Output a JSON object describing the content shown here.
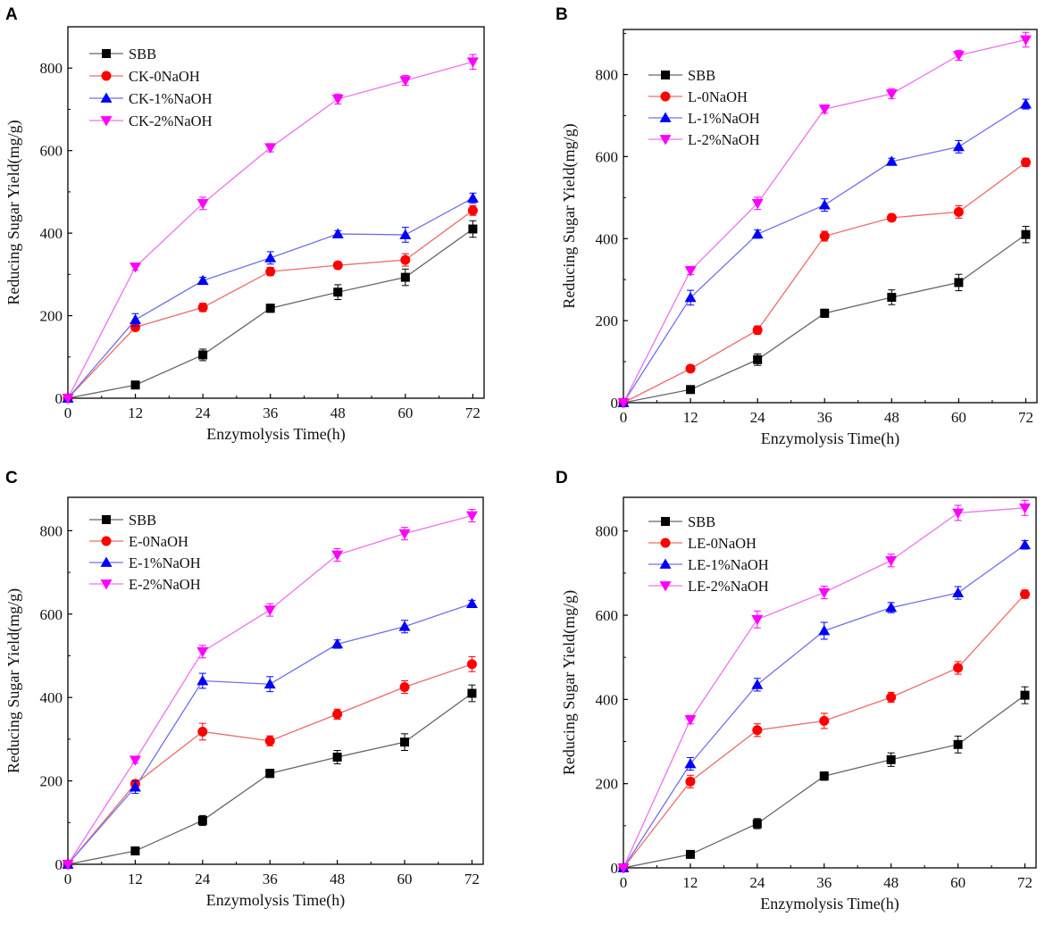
{
  "figure": {
    "marker_styles": {
      "SBB": "square",
      "0NaOH": "circle",
      "1%NaOH": "triangle-up",
      "2%NaOH": "triangle-down"
    },
    "colors": {
      "SBB": "#000000",
      "0NaOH": "#ff0000",
      "1%NaOH": "#0000ff",
      "2%NaOH": "#ff00ff",
      "SBB_line": "#666666",
      "0NaOH_line": "#f06a6a",
      "1%NaOH_line": "#7070ee",
      "2%NaOH_line": "#f070f0"
    }
  },
  "chart_data": [
    {
      "panel": "A",
      "type": "line",
      "xlabel": "Enzymolysis Time(h)",
      "ylabel": "Reducing Sugar Yield(mg/g)",
      "x": [
        0,
        12,
        24,
        36,
        48,
        60,
        72
      ],
      "xticks": [
        "0",
        "12",
        "24",
        "36",
        "48",
        "60",
        "72"
      ],
      "yticks": [
        "0",
        "200",
        "400",
        "600",
        "800"
      ],
      "xlim": [
        0,
        74
      ],
      "ylim": [
        0,
        900
      ],
      "legend_position": "top-left",
      "series": [
        {
          "name": "SBB",
          "key": "SBB",
          "values": [
            0,
            32,
            105,
            218,
            257,
            293,
            410
          ],
          "errors": [
            0,
            5,
            14,
            10,
            18,
            20,
            20
          ]
        },
        {
          "name": "CK-0NaOH",
          "key": "0NaOH",
          "values": [
            0,
            172,
            220,
            307,
            322,
            335,
            455
          ],
          "errors": [
            0,
            8,
            10,
            10,
            8,
            15,
            12
          ]
        },
        {
          "name": "CK-1%NaOH",
          "key": "1%NaOH",
          "values": [
            0,
            190,
            285,
            340,
            398,
            396,
            485
          ],
          "errors": [
            0,
            15,
            8,
            15,
            8,
            18,
            12
          ]
        },
        {
          "name": "CK-2%NaOH",
          "key": "2%NaOH",
          "values": [
            0,
            318,
            472,
            607,
            725,
            770,
            815
          ],
          "errors": [
            0,
            8,
            15,
            10,
            12,
            12,
            18
          ]
        }
      ]
    },
    {
      "panel": "B",
      "type": "line",
      "xlabel": "Enzymolysis Time(h)",
      "ylabel": "Reducing Sugar Yield(mg/g)",
      "x": [
        0,
        12,
        24,
        36,
        48,
        60,
        72
      ],
      "xticks": [
        "0",
        "12",
        "24",
        "36",
        "48",
        "60",
        "72"
      ],
      "yticks": [
        "0",
        "200",
        "400",
        "600",
        "800"
      ],
      "xlim": [
        0,
        74
      ],
      "ylim": [
        0,
        910
      ],
      "legend_position": "top-left",
      "series": [
        {
          "name": "SBB",
          "key": "SBB",
          "values": [
            0,
            32,
            105,
            218,
            257,
            293,
            410
          ],
          "errors": [
            0,
            5,
            14,
            10,
            18,
            20,
            20
          ]
        },
        {
          "name": "L-0NaOH",
          "key": "0NaOH",
          "values": [
            0,
            83,
            177,
            406,
            451,
            465,
            586
          ],
          "errors": [
            0,
            8,
            10,
            12,
            8,
            15,
            10
          ]
        },
        {
          "name": "L-1%NaOH",
          "key": "1%NaOH",
          "values": [
            0,
            256,
            411,
            482,
            588,
            624,
            728
          ],
          "errors": [
            0,
            18,
            10,
            15,
            8,
            15,
            12
          ]
        },
        {
          "name": "L-2%NaOH",
          "key": "2%NaOH",
          "values": [
            0,
            322,
            486,
            716,
            753,
            847,
            885
          ],
          "errors": [
            0,
            10,
            15,
            10,
            12,
            12,
            18
          ]
        }
      ]
    },
    {
      "panel": "C",
      "type": "line",
      "xlabel": "Enzymolysis Time(h)",
      "ylabel": "Reducing Sugar Yield(mg/g)",
      "x": [
        0,
        12,
        24,
        36,
        48,
        60,
        72
      ],
      "xticks": [
        "0",
        "12",
        "24",
        "36",
        "48",
        "60",
        "72"
      ],
      "yticks": [
        "0",
        "200",
        "400",
        "600",
        "800"
      ],
      "xlim": [
        0,
        74
      ],
      "ylim": [
        0,
        880
      ],
      "legend_position": "top-left",
      "series": [
        {
          "name": "SBB",
          "key": "SBB",
          "values": [
            0,
            32,
            105,
            218,
            257,
            293,
            410
          ],
          "errors": [
            0,
            5,
            12,
            10,
            16,
            20,
            20
          ]
        },
        {
          "name": "E-0NaOH",
          "key": "0NaOH",
          "values": [
            0,
            193,
            318,
            296,
            360,
            425,
            480
          ],
          "errors": [
            0,
            8,
            20,
            12,
            12,
            15,
            18
          ]
        },
        {
          "name": "E-1%NaOH",
          "key": "1%NaOH",
          "values": [
            0,
            185,
            440,
            432,
            528,
            570,
            625
          ],
          "errors": [
            0,
            15,
            18,
            18,
            10,
            15,
            8
          ]
        },
        {
          "name": "E-2%NaOH",
          "key": "2%NaOH",
          "values": [
            0,
            250,
            510,
            610,
            742,
            793,
            836
          ],
          "errors": [
            0,
            8,
            15,
            15,
            15,
            15,
            15
          ]
        }
      ]
    },
    {
      "panel": "D",
      "type": "line",
      "xlabel": "Enzymolysis Time(h)",
      "ylabel": "Reducing Sugar Yield(mg/g)",
      "x": [
        0,
        12,
        24,
        36,
        48,
        60,
        72
      ],
      "xticks": [
        "0",
        "12",
        "24",
        "36",
        "48",
        "60",
        "72"
      ],
      "yticks": [
        "0",
        "200",
        "400",
        "600",
        "800"
      ],
      "xlim": [
        0,
        74
      ],
      "ylim": [
        0,
        880
      ],
      "legend_position": "top-left",
      "series": [
        {
          "name": "SBB",
          "key": "SBB",
          "values": [
            0,
            32,
            105,
            218,
            257,
            293,
            410
          ],
          "errors": [
            0,
            5,
            12,
            10,
            16,
            20,
            20
          ]
        },
        {
          "name": "LE-0NaOH",
          "key": "0NaOH",
          "values": [
            0,
            205,
            327,
            349,
            405,
            475,
            650
          ],
          "errors": [
            0,
            15,
            15,
            18,
            12,
            15,
            10
          ]
        },
        {
          "name": "LE-1%NaOH",
          "key": "1%NaOH",
          "values": [
            0,
            247,
            435,
            563,
            618,
            653,
            767
          ],
          "errors": [
            0,
            15,
            15,
            20,
            12,
            15,
            10
          ]
        },
        {
          "name": "LE-2%NaOH",
          "key": "2%NaOH",
          "values": [
            0,
            352,
            590,
            654,
            730,
            843,
            855
          ],
          "errors": [
            0,
            10,
            20,
            15,
            15,
            18,
            18
          ]
        }
      ]
    }
  ]
}
